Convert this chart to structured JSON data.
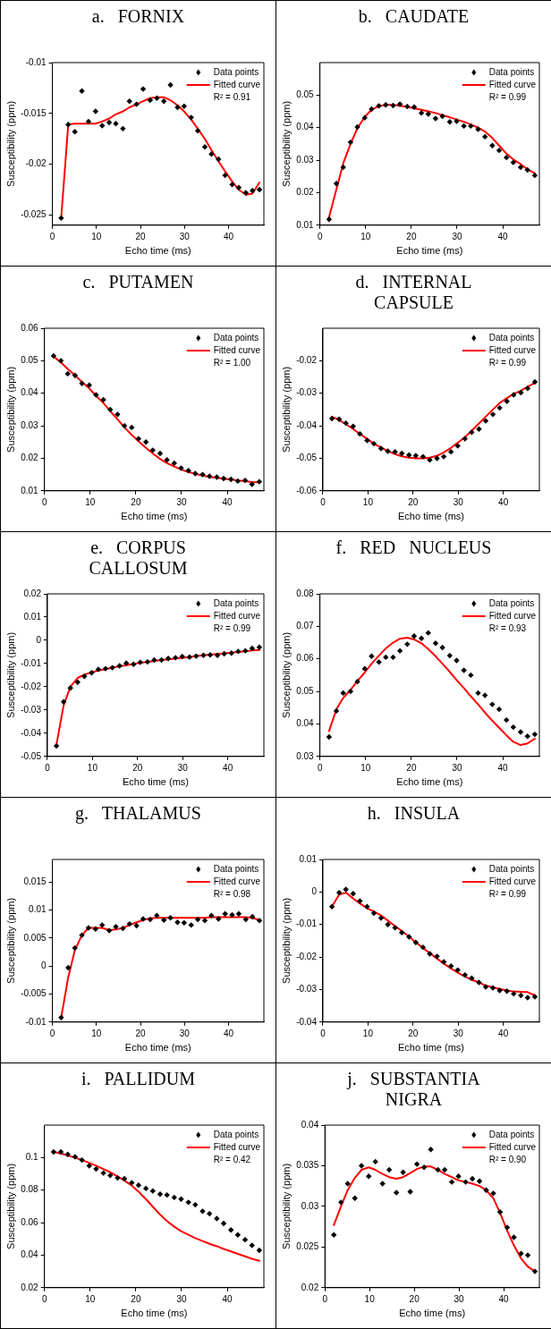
{
  "chart_data": [
    {
      "type": "scatter",
      "title": "a. FORNIX",
      "xlabel": "Echo time (ms)",
      "ylabel": "Susceptibility (ppm)",
      "x": [
        2,
        3.6,
        5.1,
        6.7,
        8.2,
        9.8,
        11.3,
        12.9,
        14.4,
        16,
        17.5,
        19.1,
        20.6,
        22.2,
        23.7,
        25.3,
        26.8,
        28.4,
        29.9,
        31.5,
        33,
        34.6,
        36.1,
        37.7,
        39.2,
        40.8,
        42.3,
        43.9,
        45.4,
        47
      ],
      "xlim": [
        0,
        48
      ],
      "xticks": [
        0,
        10,
        20,
        30,
        40
      ],
      "ylim": [
        -0.026,
        -0.01
      ],
      "yticks": [
        -0.025,
        -0.02,
        -0.015,
        -0.01
      ],
      "legend": "top right",
      "annotations": [
        "R² = 0.91"
      ],
      "series": [
        {
          "name": "Data points",
          "marker": "diamond",
          "color": "#000000",
          "values": [
            -0.0253,
            -0.0161,
            -0.0168,
            -0.0128,
            -0.0158,
            -0.0148,
            -0.0162,
            -0.0159,
            -0.016,
            -0.0165,
            -0.0138,
            -0.0141,
            -0.0126,
            -0.0137,
            -0.0135,
            -0.0138,
            -0.0122,
            -0.0144,
            -0.0143,
            -0.0154,
            -0.0167,
            -0.0183,
            -0.019,
            -0.0195,
            -0.0211,
            -0.022,
            -0.0223,
            -0.0228,
            -0.0226,
            -0.0225
          ]
        },
        {
          "name": "Fitted curve",
          "type": "line",
          "marker": "none",
          "color": "#ff0000",
          "values": [
            -0.0253,
            -0.0161,
            -0.016,
            -0.016,
            -0.016,
            -0.016,
            -0.0158,
            -0.0155,
            -0.0151,
            -0.0148,
            -0.0144,
            -0.0141,
            -0.0138,
            -0.0135,
            -0.0134,
            -0.0134,
            -0.0137,
            -0.0142,
            -0.0148,
            -0.0156,
            -0.0165,
            -0.0175,
            -0.0186,
            -0.0197,
            -0.0207,
            -0.0217,
            -0.0225,
            -0.023,
            -0.0229,
            -0.0218
          ]
        }
      ]
    },
    {
      "type": "scatter",
      "title": "b. CAUDATE",
      "xlabel": "Echo time (ms)",
      "ylabel": "Susceptibility (ppm)",
      "x": [
        2,
        3.6,
        5.1,
        6.7,
        8.2,
        9.8,
        11.3,
        12.9,
        14.4,
        16,
        17.5,
        19.1,
        20.6,
        22.2,
        23.7,
        25.3,
        26.8,
        28.4,
        29.9,
        31.5,
        33,
        34.6,
        36.1,
        37.7,
        39.2,
        40.8,
        42.3,
        43.9,
        45.4,
        47
      ],
      "xlim": [
        0,
        48
      ],
      "xticks": [
        0,
        10,
        20,
        30,
        40
      ],
      "ylim": [
        0.01,
        0.06
      ],
      "yticks": [
        0.01,
        0.02,
        0.03,
        0.04,
        0.05
      ],
      "legend": "top right",
      "annotations": [
        "R² = 0.99"
      ],
      "series": [
        {
          "name": "Data points",
          "marker": "diamond",
          "color": "#000000",
          "values": [
            0.0118,
            0.0228,
            0.0278,
            0.0355,
            0.0402,
            0.043,
            0.0457,
            0.0467,
            0.047,
            0.0468,
            0.0472,
            0.0465,
            0.0463,
            0.0445,
            0.0442,
            0.0428,
            0.0435,
            0.0418,
            0.042,
            0.0405,
            0.0405,
            0.0395,
            0.0372,
            0.0345,
            0.033,
            0.0308,
            0.0293,
            0.0278,
            0.027,
            0.0253
          ]
        },
        {
          "name": "Fitted curve",
          "type": "line",
          "marker": "none",
          "color": "#ff0000",
          "values": [
            0.0125,
            0.021,
            0.029,
            0.035,
            0.0398,
            0.0433,
            0.0455,
            0.0466,
            0.047,
            0.047,
            0.0467,
            0.0464,
            0.046,
            0.0455,
            0.045,
            0.0445,
            0.0438,
            0.0432,
            0.0425,
            0.0418,
            0.041,
            0.04,
            0.0388,
            0.0368,
            0.0345,
            0.032,
            0.0302,
            0.0288,
            0.0272,
            0.026
          ]
        }
      ]
    },
    {
      "type": "scatter",
      "title": "c. PUTAMEN",
      "xlabel": "Echo time (ms)",
      "ylabel": "Susceptibility (ppm)",
      "x": [
        2,
        3.6,
        5.1,
        6.7,
        8.2,
        9.8,
        11.3,
        12.9,
        14.4,
        16,
        17.5,
        19.1,
        20.6,
        22.2,
        23.7,
        25.3,
        26.8,
        28.4,
        29.9,
        31.5,
        33,
        34.6,
        36.1,
        37.7,
        39.2,
        40.8,
        42.3,
        43.9,
        45.4,
        47
      ],
      "xlim": [
        0,
        48
      ],
      "xticks": [
        0,
        10,
        20,
        30,
        40
      ],
      "ylim": [
        0.01,
        0.06
      ],
      "yticks": [
        0.01,
        0.02,
        0.03,
        0.04,
        0.05,
        0.06
      ],
      "legend": "top right",
      "annotations": [
        "R² = 1.00"
      ],
      "series": [
        {
          "name": "Data points",
          "marker": "diamond",
          "color": "#000000",
          "values": [
            0.0515,
            0.05,
            0.046,
            0.0455,
            0.043,
            0.0425,
            0.0395,
            0.038,
            0.035,
            0.0335,
            0.03,
            0.0295,
            0.026,
            0.025,
            0.0225,
            0.0215,
            0.0195,
            0.0185,
            0.017,
            0.0162,
            0.0153,
            0.015,
            0.0145,
            0.0142,
            0.0138,
            0.0135,
            0.013,
            0.0132,
            0.012,
            0.0128
          ]
        },
        {
          "name": "Fitted curve",
          "type": "line",
          "marker": "none",
          "color": "#ff0000",
          "values": [
            0.0513,
            0.0495,
            0.0475,
            0.0455,
            0.0435,
            0.0415,
            0.0392,
            0.037,
            0.0345,
            0.032,
            0.0295,
            0.0272,
            0.0252,
            0.0232,
            0.0215,
            0.0198,
            0.0185,
            0.0175,
            0.0165,
            0.0158,
            0.0152,
            0.0147,
            0.0143,
            0.014,
            0.0137,
            0.0135,
            0.0132,
            0.013,
            0.0127,
            0.0126
          ]
        }
      ]
    },
    {
      "type": "scatter",
      "title": "d. INTERNAL CAPSULE",
      "xlabel": "Echo time (ms)",
      "ylabel": "Susceptibility (ppm)",
      "x": [
        2,
        3.6,
        5.1,
        6.7,
        8.2,
        9.8,
        11.3,
        12.9,
        14.4,
        16,
        17.5,
        19.1,
        20.6,
        22.2,
        23.7,
        25.3,
        26.8,
        28.4,
        29.9,
        31.5,
        33,
        34.6,
        36.1,
        37.7,
        39.2,
        40.8,
        42.3,
        43.9,
        45.4,
        47
      ],
      "xlim": [
        0,
        48
      ],
      "xticks": [
        0,
        10,
        20,
        30,
        40
      ],
      "ylim": [
        -0.06,
        -0.01
      ],
      "yticks": [
        -0.06,
        -0.05,
        -0.04,
        -0.03,
        -0.02
      ],
      "legend": "top right",
      "annotations": [
        "R² = 0.99"
      ],
      "series": [
        {
          "name": "Data points",
          "marker": "diamond",
          "color": "#000000",
          "values": [
            -0.0378,
            -0.038,
            -0.0392,
            -0.0402,
            -0.0425,
            -0.0445,
            -0.0455,
            -0.047,
            -0.0478,
            -0.048,
            -0.0485,
            -0.049,
            -0.0492,
            -0.0495,
            -0.0505,
            -0.05,
            -0.0495,
            -0.048,
            -0.0462,
            -0.044,
            -0.042,
            -0.041,
            -0.0385,
            -0.0365,
            -0.0345,
            -0.0325,
            -0.0305,
            -0.0298,
            -0.0285,
            -0.0265
          ]
        },
        {
          "name": "Fitted curve",
          "type": "line",
          "marker": "none",
          "color": "#ff0000",
          "values": [
            -0.0372,
            -0.0382,
            -0.0395,
            -0.041,
            -0.0425,
            -0.044,
            -0.0455,
            -0.0467,
            -0.0478,
            -0.0487,
            -0.0494,
            -0.0498,
            -0.05,
            -0.05,
            -0.0498,
            -0.0492,
            -0.0482,
            -0.0468,
            -0.0452,
            -0.0435,
            -0.0415,
            -0.0393,
            -0.0372,
            -0.035,
            -0.033,
            -0.0315,
            -0.0302,
            -0.0292,
            -0.028,
            -0.0268
          ]
        }
      ]
    },
    {
      "type": "scatter",
      "title": "e. CORPUS CALLOSUM",
      "xlabel": "Echo time (ms)",
      "ylabel": "Susceptibility (ppm)",
      "x": [
        2,
        3.6,
        5.1,
        6.7,
        8.2,
        9.8,
        11.3,
        12.9,
        14.4,
        16,
        17.5,
        19.1,
        20.6,
        22.2,
        23.7,
        25.3,
        26.8,
        28.4,
        29.9,
        31.5,
        33,
        34.6,
        36.1,
        37.7,
        39.2,
        40.8,
        42.3,
        43.9,
        45.4,
        47
      ],
      "xlim": [
        0,
        48
      ],
      "xticks": [
        0,
        10,
        20,
        30,
        40
      ],
      "ylim": [
        -0.05,
        0.02
      ],
      "yticks": [
        -0.05,
        -0.04,
        -0.03,
        -0.02,
        -0.01,
        0,
        0.01,
        0.02
      ],
      "legend": "top right",
      "annotations": [
        "R² = 0.99"
      ],
      "series": [
        {
          "name": "Data points",
          "marker": "diamond",
          "color": "#000000",
          "values": [
            -0.0455,
            -0.0265,
            -0.0205,
            -0.018,
            -0.0155,
            -0.014,
            -0.0125,
            -0.0122,
            -0.0118,
            -0.011,
            -0.0098,
            -0.0103,
            -0.0095,
            -0.0093,
            -0.0085,
            -0.0085,
            -0.0078,
            -0.0075,
            -0.007,
            -0.0072,
            -0.0068,
            -0.0065,
            -0.0063,
            -0.0065,
            -0.0058,
            -0.0055,
            -0.0048,
            -0.0045,
            -0.0035,
            -0.003
          ]
        },
        {
          "name": "Fitted curve",
          "type": "line",
          "marker": "none",
          "color": "#ff0000",
          "values": [
            -0.045,
            -0.028,
            -0.02,
            -0.0162,
            -0.0148,
            -0.0138,
            -0.013,
            -0.0124,
            -0.0118,
            -0.0112,
            -0.0107,
            -0.0102,
            -0.0097,
            -0.0093,
            -0.0089,
            -0.0085,
            -0.0082,
            -0.0078,
            -0.0075,
            -0.0072,
            -0.0068,
            -0.0065,
            -0.0062,
            -0.0059,
            -0.0056,
            -0.0053,
            -0.005,
            -0.0047,
            -0.0044,
            -0.0042
          ]
        }
      ]
    },
    {
      "type": "scatter",
      "title": "f. RED NUCLEUS",
      "xlabel": "Echo time (ms)",
      "ylabel": "Susceptibility (ppm)",
      "x": [
        2,
        3.6,
        5.1,
        6.7,
        8.2,
        9.8,
        11.3,
        12.9,
        14.4,
        16,
        17.5,
        19.1,
        20.6,
        22.2,
        23.7,
        25.3,
        26.8,
        28.4,
        29.9,
        31.5,
        33,
        34.6,
        36.1,
        37.7,
        39.2,
        40.8,
        42.3,
        43.9,
        45.4,
        47
      ],
      "xlim": [
        0,
        48
      ],
      "xticks": [
        0,
        10,
        20,
        30,
        40
      ],
      "ylim": [
        0.03,
        0.08
      ],
      "yticks": [
        0.03,
        0.04,
        0.05,
        0.06,
        0.07,
        0.08
      ],
      "legend": "top right",
      "annotations": [
        "R² = 0.93"
      ],
      "series": [
        {
          "name": "Data points",
          "marker": "diamond",
          "color": "#000000",
          "values": [
            0.036,
            0.044,
            0.0495,
            0.05,
            0.053,
            0.057,
            0.0608,
            0.059,
            0.0605,
            0.0605,
            0.0625,
            0.0645,
            0.067,
            0.0663,
            0.068,
            0.0648,
            0.0635,
            0.061,
            0.0595,
            0.0565,
            0.055,
            0.0495,
            0.0488,
            0.046,
            0.0445,
            0.0412,
            0.039,
            0.0375,
            0.0362,
            0.0368
          ]
        },
        {
          "name": "Fitted curve",
          "type": "line",
          "marker": "none",
          "color": "#ff0000",
          "values": [
            0.0378,
            0.0445,
            0.048,
            0.0505,
            0.0532,
            0.0558,
            0.0585,
            0.061,
            0.0632,
            0.065,
            0.0662,
            0.0665,
            0.066,
            0.0648,
            0.063,
            0.0608,
            0.0585,
            0.056,
            0.0535,
            0.051,
            0.0485,
            0.046,
            0.0435,
            0.041,
            0.0388,
            0.0365,
            0.0345,
            0.0335,
            0.034,
            0.0355
          ]
        }
      ]
    },
    {
      "type": "scatter",
      "title": "g. THALAMUS",
      "xlabel": "Echo time (ms)",
      "ylabel": "Susceptibility (ppm)",
      "x": [
        2,
        3.6,
        5.1,
        6.7,
        8.2,
        9.8,
        11.3,
        12.9,
        14.4,
        16,
        17.5,
        19.1,
        20.6,
        22.2,
        23.7,
        25.3,
        26.8,
        28.4,
        29.9,
        31.5,
        33,
        34.6,
        36.1,
        37.7,
        39.2,
        40.8,
        42.3,
        43.9,
        45.4,
        47
      ],
      "xlim": [
        0,
        48
      ],
      "xticks": [
        0,
        10,
        20,
        30,
        40
      ],
      "ylim": [
        -0.01,
        0.019
      ],
      "yticks": [
        -0.01,
        -0.005,
        0,
        0.005,
        0.01,
        0.015
      ],
      "legend": "top right",
      "annotations": [
        "R² = 0.98"
      ],
      "series": [
        {
          "name": "Data points",
          "marker": "diamond",
          "color": "#000000",
          "values": [
            -0.0092,
            -0.0003,
            0.0032,
            0.0055,
            0.0068,
            0.0066,
            0.0073,
            0.0063,
            0.007,
            0.0067,
            0.0075,
            0.0072,
            0.0084,
            0.0083,
            0.009,
            0.0082,
            0.0086,
            0.0078,
            0.0077,
            0.0073,
            0.0083,
            0.0081,
            0.009,
            0.0084,
            0.0093,
            0.0091,
            0.0093,
            0.0083,
            0.0088,
            0.0081
          ]
        },
        {
          "name": "Fitted curve",
          "type": "line",
          "marker": "none",
          "color": "#ff0000",
          "values": [
            -0.0092,
            -0.002,
            0.0028,
            0.0055,
            0.0068,
            0.0068,
            0.0068,
            0.0064,
            0.0065,
            0.0068,
            0.0073,
            0.0078,
            0.0082,
            0.0085,
            0.0086,
            0.0086,
            0.0086,
            0.0086,
            0.0086,
            0.0086,
            0.0086,
            0.0086,
            0.0087,
            0.0087,
            0.0087,
            0.0087,
            0.0087,
            0.0087,
            0.0086,
            0.0082
          ]
        }
      ]
    },
    {
      "type": "scatter",
      "title": "h. INSULA",
      "xlabel": "Echo time (ms)",
      "ylabel": "Susceptibility (ppm)",
      "x": [
        2,
        3.6,
        5.1,
        6.7,
        8.2,
        9.8,
        11.3,
        12.9,
        14.4,
        16,
        17.5,
        19.1,
        20.6,
        22.2,
        23.7,
        25.3,
        26.8,
        28.4,
        29.9,
        31.5,
        33,
        34.6,
        36.1,
        37.7,
        39.2,
        40.8,
        42.3,
        43.9,
        45.4,
        47
      ],
      "xlim": [
        0,
        48
      ],
      "xticks": [
        0,
        10,
        20,
        30,
        40
      ],
      "ylim": [
        -0.04,
        0.01
      ],
      "yticks": [
        -0.04,
        -0.03,
        -0.02,
        -0.01,
        0,
        0.01
      ],
      "legend": "top right",
      "annotations": [
        "R² = 0.99"
      ],
      "series": [
        {
          "name": "Data points",
          "marker": "diamond",
          "color": "#000000",
          "values": [
            -0.0045,
            -0.0002,
            0.0008,
            -0.0005,
            -0.0028,
            -0.0045,
            -0.0065,
            -0.008,
            -0.01,
            -0.011,
            -0.0125,
            -0.0138,
            -0.0155,
            -0.017,
            -0.019,
            -0.0198,
            -0.0215,
            -0.0228,
            -0.024,
            -0.0255,
            -0.0265,
            -0.0278,
            -0.0292,
            -0.0295,
            -0.0303,
            -0.0305,
            -0.0313,
            -0.0318,
            -0.0325,
            -0.0322
          ]
        },
        {
          "name": "Fitted curve",
          "type": "line",
          "marker": "none",
          "color": "#ff0000",
          "values": [
            -0.0045,
            -0.0008,
            -0.0002,
            -0.002,
            -0.0035,
            -0.005,
            -0.006,
            -0.0072,
            -0.0088,
            -0.0105,
            -0.012,
            -0.0137,
            -0.0155,
            -0.0172,
            -0.0188,
            -0.0205,
            -0.022,
            -0.0235,
            -0.0248,
            -0.026,
            -0.027,
            -0.0278,
            -0.0288,
            -0.0293,
            -0.0298,
            -0.0303,
            -0.0306,
            -0.0307,
            -0.0308,
            -0.0318
          ]
        }
      ]
    },
    {
      "type": "scatter",
      "title": "i. PALLIDUM",
      "xlabel": "Echo time (ms)",
      "ylabel": "Susceptibility (ppm)",
      "x": [
        2,
        3.6,
        5.1,
        6.7,
        8.2,
        9.8,
        11.3,
        12.9,
        14.4,
        16,
        17.5,
        19.1,
        20.6,
        22.2,
        23.7,
        25.3,
        26.8,
        28.4,
        29.9,
        31.5,
        33,
        34.6,
        36.1,
        37.7,
        39.2,
        40.8,
        42.3,
        43.9,
        45.4,
        47
      ],
      "xlim": [
        0,
        48
      ],
      "xticks": [
        0,
        10,
        20,
        30,
        40
      ],
      "ylim": [
        0.02,
        0.12
      ],
      "yticks": [
        0.02,
        0.04,
        0.06,
        0.08,
        0.1
      ],
      "legend": "top right",
      "annotations": [
        "R² = 0.42"
      ],
      "series": [
        {
          "name": "Data points",
          "marker": "diamond",
          "color": "#000000",
          "values": [
            0.1035,
            0.1035,
            0.102,
            0.1005,
            0.0985,
            0.095,
            0.093,
            0.0905,
            0.089,
            0.0875,
            0.087,
            0.0845,
            0.083,
            0.081,
            0.0795,
            0.0775,
            0.077,
            0.0755,
            0.0745,
            0.0725,
            0.071,
            0.067,
            0.0655,
            0.0625,
            0.0595,
            0.0555,
            0.0525,
            0.0495,
            0.046,
            0.043
          ]
        },
        {
          "name": "Fitted curve",
          "type": "line",
          "marker": "none",
          "color": "#ff0000",
          "values": [
            0.1035,
            0.1025,
            0.1013,
            0.1,
            0.0985,
            0.0968,
            0.095,
            0.093,
            0.091,
            0.0885,
            0.0858,
            0.0828,
            0.079,
            0.0745,
            0.0698,
            0.065,
            0.061,
            0.0575,
            0.0548,
            0.0525,
            0.0505,
            0.0487,
            0.047,
            0.0455,
            0.0438,
            0.0423,
            0.0408,
            0.0393,
            0.0378,
            0.0365
          ]
        }
      ]
    },
    {
      "type": "scatter",
      "title": "j. SUBSTANTIA NIGRA",
      "xlabel": "Echo time (ms)",
      "ylabel": "Susceptibility (ppm)",
      "x": [
        2,
        3.6,
        5.1,
        6.7,
        8.2,
        9.8,
        11.3,
        12.9,
        14.4,
        16,
        17.5,
        19.1,
        20.6,
        22.2,
        23.7,
        25.3,
        26.8,
        28.4,
        29.9,
        31.5,
        33,
        34.6,
        36.1,
        37.7,
        39.2,
        40.8,
        42.3,
        43.9,
        45.4,
        47
      ],
      "xlim": [
        0,
        48
      ],
      "xticks": [
        0,
        10,
        20,
        30,
        40
      ],
      "ylim": [
        0.02,
        0.04
      ],
      "yticks": [
        0.02,
        0.025,
        0.03,
        0.035,
        0.04
      ],
      "legend": "top right",
      "annotations": [
        "R² = 0.90"
      ],
      "series": [
        {
          "name": "Data points",
          "marker": "diamond",
          "color": "#000000",
          "values": [
            0.0265,
            0.0305,
            0.0328,
            0.031,
            0.035,
            0.0337,
            0.0355,
            0.0328,
            0.0345,
            0.0317,
            0.0342,
            0.0318,
            0.0352,
            0.0348,
            0.037,
            0.0345,
            0.0345,
            0.033,
            0.0337,
            0.033,
            0.0334,
            0.0331,
            0.032,
            0.0316,
            0.0293,
            0.0274,
            0.0262,
            0.0242,
            0.024,
            0.022
          ]
        },
        {
          "name": "Fitted curve",
          "type": "line",
          "marker": "none",
          "color": "#ff0000",
          "values": [
            0.0277,
            0.03,
            0.032,
            0.0335,
            0.0345,
            0.0348,
            0.0345,
            0.034,
            0.0336,
            0.0334,
            0.0336,
            0.0341,
            0.0346,
            0.0349,
            0.0349,
            0.0345,
            0.034,
            0.0336,
            0.0332,
            0.033,
            0.0328,
            0.0325,
            0.032,
            0.031,
            0.0292,
            0.027,
            0.0252,
            0.0236,
            0.0226,
            0.022
          ]
        }
      ]
    }
  ]
}
